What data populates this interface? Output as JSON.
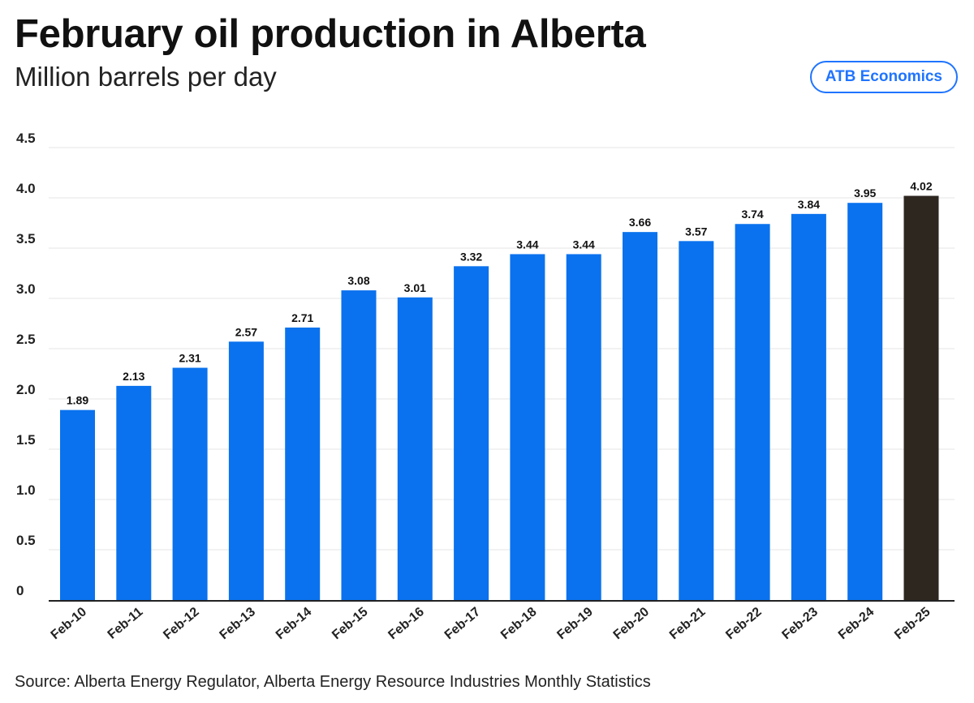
{
  "header": {
    "title": "February oil production in Alberta",
    "subtitle": "Million barrels per day",
    "brand": "ATB Economics"
  },
  "colors": {
    "bar": "#0a72ee",
    "highlight": "#2e2720",
    "grid": "#e6e6e6",
    "axis": "#222222",
    "brand": "#1f74ff"
  },
  "chart_data": {
    "type": "bar",
    "title": "February oil production in Alberta",
    "ylabel": "Million barrels per day",
    "xlabel": "",
    "categories": [
      "Feb-10",
      "Feb-11",
      "Feb-12",
      "Feb-13",
      "Feb-14",
      "Feb-15",
      "Feb-16",
      "Feb-17",
      "Feb-18",
      "Feb-19",
      "Feb-20",
      "Feb-21",
      "Feb-22",
      "Feb-23",
      "Feb-24",
      "Feb-25"
    ],
    "values": [
      1.89,
      2.13,
      2.31,
      2.57,
      2.71,
      3.08,
      3.01,
      3.32,
      3.44,
      3.44,
      3.66,
      3.57,
      3.74,
      3.84,
      3.95,
      4.02
    ],
    "value_labels": [
      "1.89",
      "2.13",
      "2.31",
      "2.57",
      "2.71",
      "3.08",
      "3.01",
      "3.32",
      "3.44",
      "3.44",
      "3.66",
      "3.57",
      "3.74",
      "3.84",
      "3.95",
      "4.02"
    ],
    "highlight_category": "Feb-25",
    "ylim": [
      0,
      4.5
    ],
    "yticks": [
      "0",
      "0.5",
      "1.0",
      "1.5",
      "2.0",
      "2.5",
      "3.0",
      "3.5",
      "4.0",
      "4.5"
    ],
    "grid": true
  },
  "footer": {
    "source": "Source: Alberta Energy Regulator, Alberta Energy Resource Industries Monthly Statistics"
  }
}
